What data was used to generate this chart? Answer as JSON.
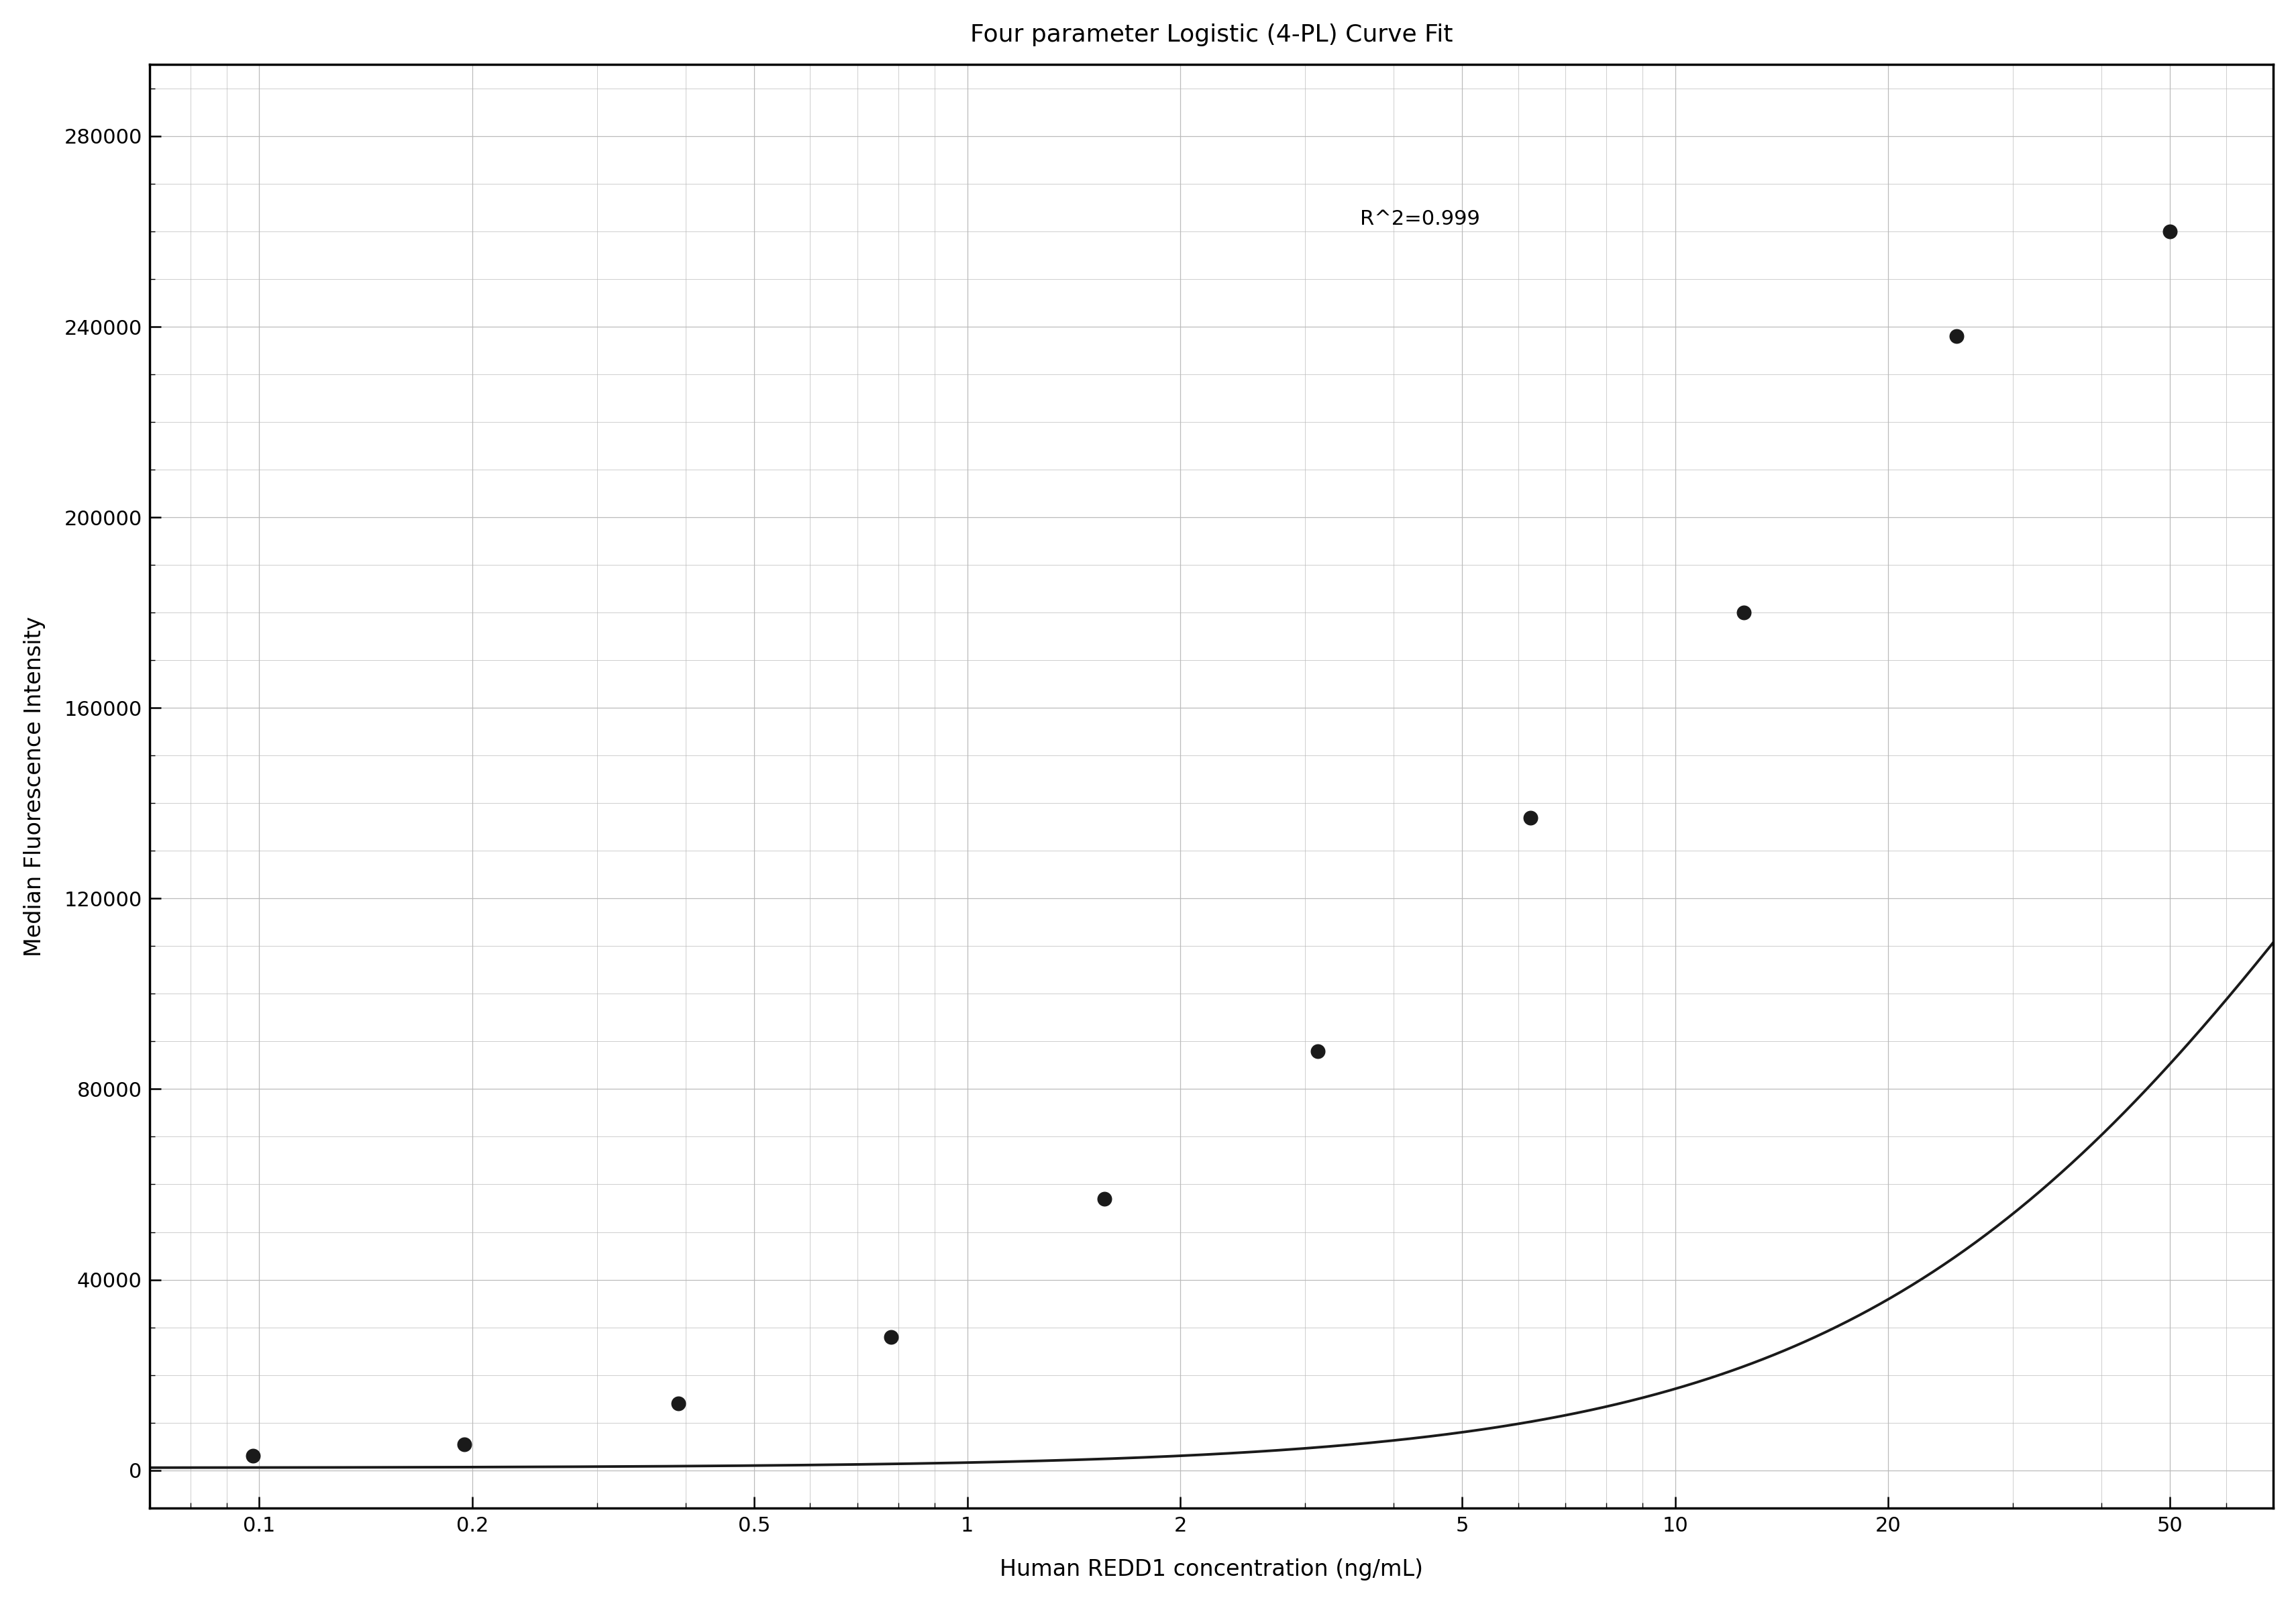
{
  "title": "Four parameter Logistic (4-PL) Curve Fit",
  "xlabel": "Human REDD1 concentration (ng/mL)",
  "ylabel": "Median Fluorescence Intensity",
  "r_squared_text": "R^2=0.999",
  "data_x": [
    0.098,
    0.195,
    0.391,
    0.781,
    1.563,
    3.125,
    6.25,
    12.5,
    25.0,
    50.0
  ],
  "data_y": [
    3000,
    5500,
    14000,
    28000,
    57000,
    88000,
    137000,
    180000,
    238000,
    260000
  ],
  "ylim": [
    -8000,
    295000
  ],
  "yticks": [
    0,
    40000,
    80000,
    120000,
    160000,
    200000,
    240000,
    280000
  ],
  "xtick_labels": [
    "0.1",
    "0.2",
    "0.5",
    "1",
    "2",
    "5",
    "10",
    "20",
    "50"
  ],
  "xtick_values": [
    0.1,
    0.2,
    0.5,
    1.0,
    2.0,
    5.0,
    10.0,
    20.0,
    50.0
  ],
  "line_color": "#1a1a1a",
  "marker_color": "#1a1a1a",
  "background_color": "#ffffff",
  "grid_color": "#bbbbbb",
  "title_fontsize": 26,
  "label_fontsize": 24,
  "tick_fontsize": 22,
  "annotation_fontsize": 22
}
